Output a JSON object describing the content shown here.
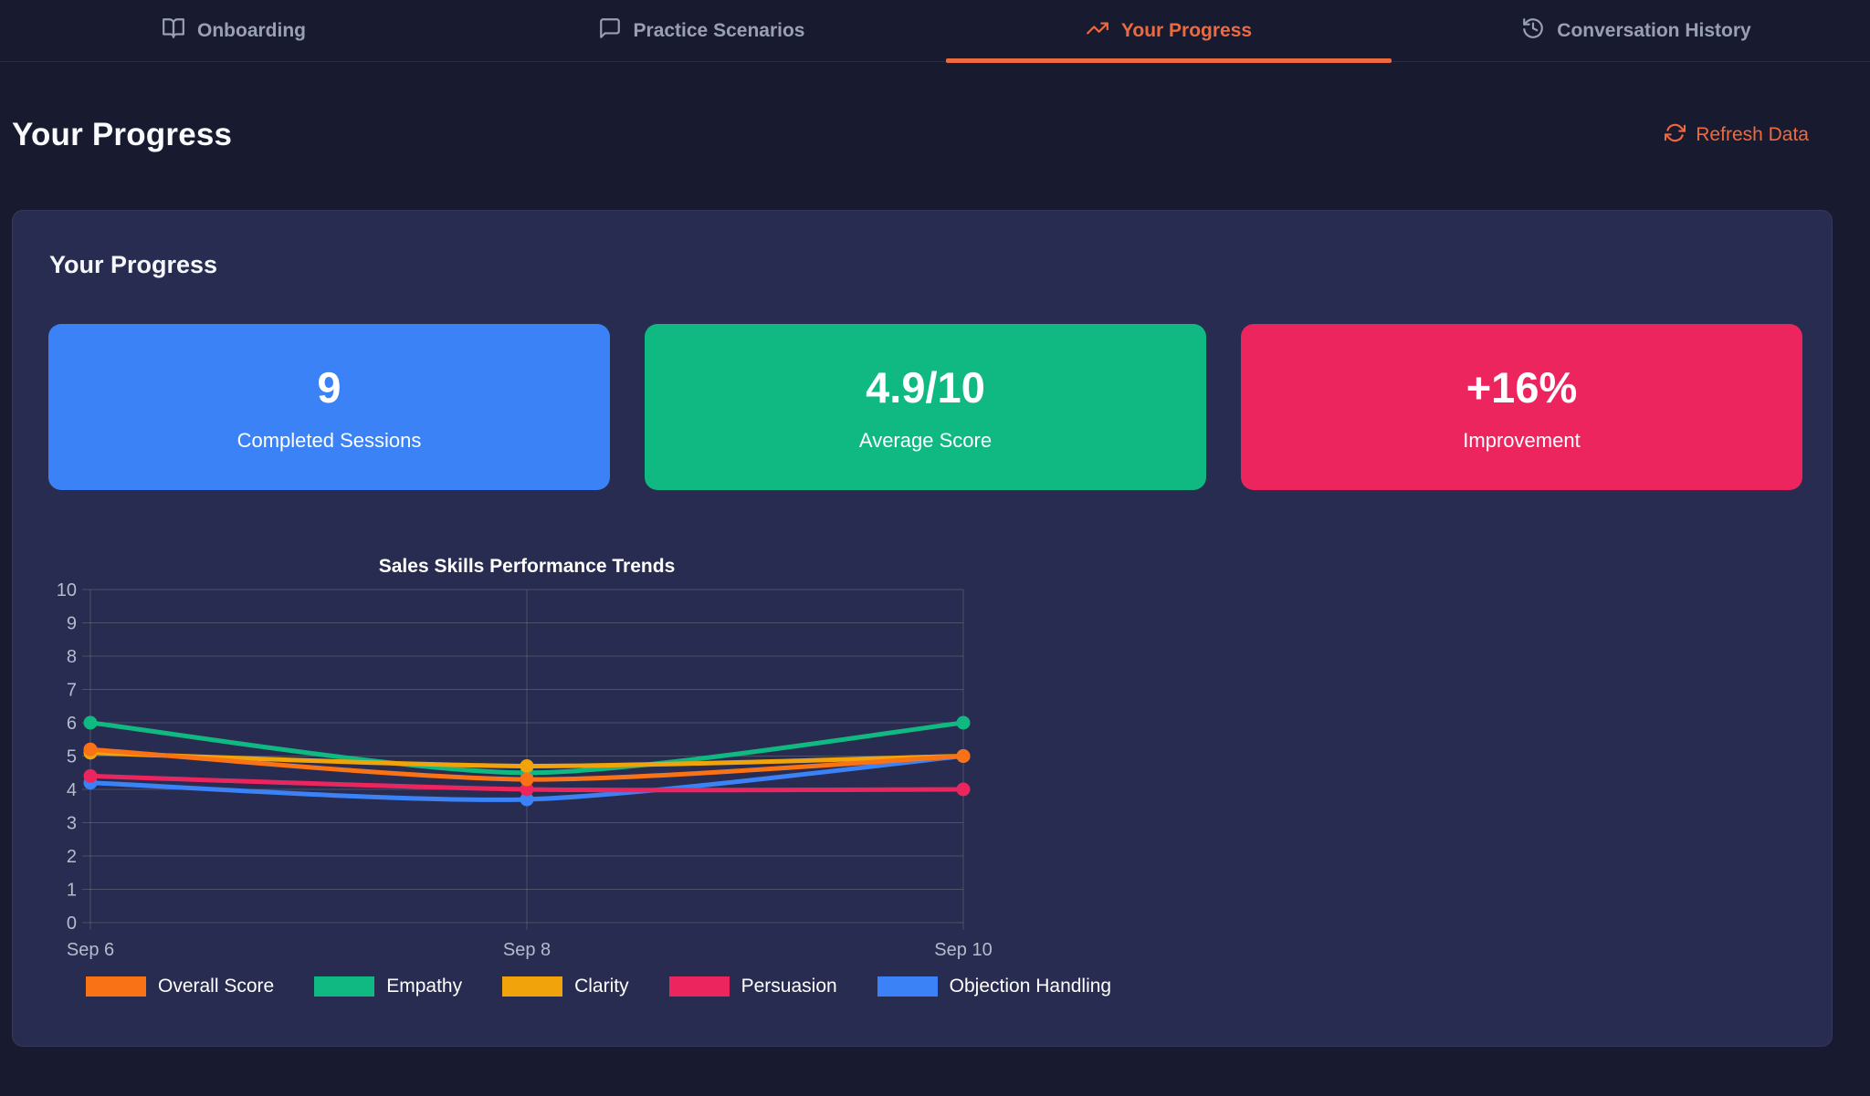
{
  "nav": {
    "tabs": [
      {
        "label": "Onboarding",
        "icon": "book-open-icon",
        "active": false
      },
      {
        "label": "Practice Scenarios",
        "icon": "chat-bubble-icon",
        "active": false
      },
      {
        "label": "Your Progress",
        "icon": "trending-up-icon",
        "active": true
      },
      {
        "label": "Conversation History",
        "icon": "history-icon",
        "active": false
      }
    ]
  },
  "header": {
    "title": "Your Progress",
    "refresh_label": "Refresh Data"
  },
  "panel": {
    "heading": "Your Progress"
  },
  "stats": [
    {
      "value": "9",
      "label": "Completed Sessions",
      "color": "#3b82f6"
    },
    {
      "value": "4.9/10",
      "label": "Average Score",
      "color": "#10b981"
    },
    {
      "value": "+16%",
      "label": "Improvement",
      "color": "#ec255f"
    }
  ],
  "chart_data": {
    "type": "line",
    "title": "Sales Skills Performance Trends",
    "x": [
      "Sep 6",
      "Sep 8",
      "Sep 10"
    ],
    "series": [
      {
        "name": "Overall Score",
        "color": "#f97316",
        "values": [
          5.2,
          4.3,
          5.0
        ]
      },
      {
        "name": "Empathy",
        "color": "#10b981",
        "values": [
          6.0,
          4.5,
          6.0
        ]
      },
      {
        "name": "Clarity",
        "color": "#f0a30a",
        "values": [
          5.1,
          4.7,
          5.0
        ]
      },
      {
        "name": "Persuasion",
        "color": "#ec255f",
        "values": [
          4.4,
          4.0,
          4.0
        ]
      },
      {
        "name": "Objection Handling",
        "color": "#3b82f6",
        "values": [
          4.2,
          3.7,
          5.0
        ]
      }
    ],
    "ylim": [
      0,
      10
    ],
    "yticks": [
      0,
      1,
      2,
      3,
      4,
      5,
      6,
      7,
      8,
      9,
      10
    ],
    "grid": true,
    "legend_position": "bottom"
  },
  "colors": {
    "accent_orange": "#ee6a3e",
    "page_background": "#181b2f",
    "panel_background": "#282c50"
  }
}
